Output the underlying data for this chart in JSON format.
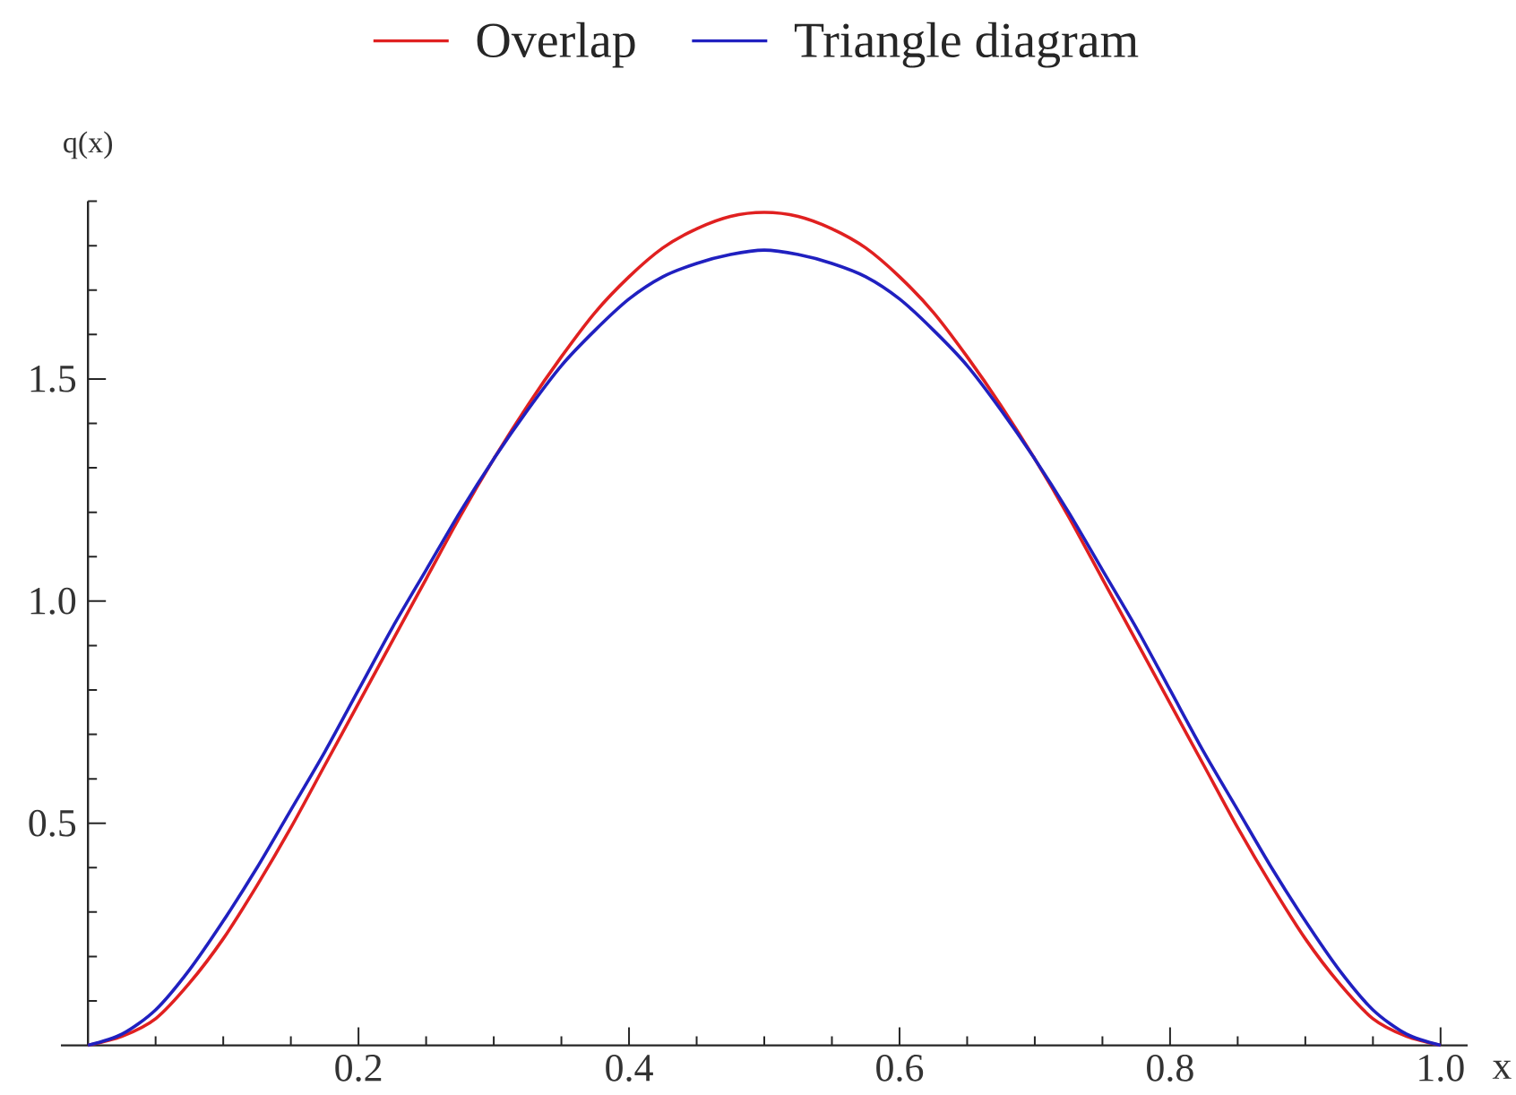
{
  "chart_data": {
    "type": "line",
    "xlabel": "x",
    "ylabel": "q(x)",
    "legend": "top",
    "marker": "none",
    "xlim": [
      -0.02,
      1.02
    ],
    "ylim": [
      0,
      1.9
    ],
    "xticks": [
      {
        "value": 0.05,
        "label": null
      },
      {
        "value": 0.1,
        "label": null
      },
      {
        "value": 0.15,
        "label": null
      },
      0.2,
      {
        "value": 0.25,
        "label": null
      },
      {
        "value": 0.3,
        "label": null
      },
      {
        "value": 0.35,
        "label": null
      },
      0.4,
      {
        "value": 0.45,
        "label": null
      },
      {
        "value": 0.5,
        "label": null
      },
      {
        "value": 0.55,
        "label": null
      },
      0.6,
      {
        "value": 0.65,
        "label": null
      },
      {
        "value": 0.7,
        "label": null
      },
      {
        "value": 0.75,
        "label": null
      },
      0.8,
      {
        "value": 0.85,
        "label": null
      },
      {
        "value": 0.9,
        "label": null
      },
      {
        "value": 0.95,
        "label": null
      },
      {
        "value": 1,
        "label": "1.0"
      }
    ],
    "yticks": [
      {
        "value": 0.1,
        "label": null
      },
      {
        "value": 0.2,
        "label": null
      },
      {
        "value": 0.3,
        "label": null
      },
      {
        "value": 0.4,
        "label": null
      },
      0.5,
      {
        "value": 0.6,
        "label": null
      },
      {
        "value": 0.7,
        "label": null
      },
      {
        "value": 0.8,
        "label": null
      },
      {
        "value": 0.9,
        "label": null
      },
      {
        "value": 1,
        "label": "1.0"
      },
      {
        "value": 1.1,
        "label": null
      },
      {
        "value": 1.2,
        "label": null
      },
      {
        "value": 1.3,
        "label": null
      },
      {
        "value": 1.4,
        "label": null
      },
      1.5,
      {
        "value": 1.6,
        "label": null
      },
      {
        "value": 1.7,
        "label": null
      },
      {
        "value": 1.8,
        "label": null
      },
      {
        "value": 1.9,
        "label": null
      }
    ],
    "x": [
      0,
      0.025,
      0.05,
      0.075,
      0.1,
      0.125,
      0.15,
      0.175,
      0.2,
      0.225,
      0.25,
      0.275,
      0.3,
      0.325,
      0.35,
      0.375,
      0.4,
      0.425,
      0.45,
      0.475,
      0.5,
      0.525,
      0.55,
      0.575,
      0.6,
      0.625,
      0.65,
      0.675,
      0.7,
      0.725,
      0.75,
      0.775,
      0.8,
      0.825,
      0.85,
      0.875,
      0.9,
      0.925,
      0.95,
      0.975,
      1
    ],
    "series": [
      {
        "name": "Overlap",
        "color": "#e02020",
        "values": [
          0,
          0.02,
          0.06,
          0.14,
          0.24,
          0.36,
          0.49,
          0.63,
          0.77,
          0.91,
          1.05,
          1.19,
          1.32,
          1.44,
          1.55,
          1.65,
          1.73,
          1.795,
          1.838,
          1.866,
          1.875,
          1.866,
          1.838,
          1.795,
          1.73,
          1.65,
          1.55,
          1.44,
          1.32,
          1.19,
          1.05,
          0.91,
          0.77,
          0.63,
          0.49,
          0.36,
          0.24,
          0.14,
          0.06,
          0.02,
          0
        ]
      },
      {
        "name": "Triangle diagram",
        "color": "#2020c0",
        "values": [
          0,
          0.025,
          0.08,
          0.17,
          0.28,
          0.4,
          0.53,
          0.66,
          0.8,
          0.94,
          1.07,
          1.2,
          1.32,
          1.43,
          1.53,
          1.61,
          1.68,
          1.73,
          1.76,
          1.78,
          1.79,
          1.78,
          1.76,
          1.73,
          1.68,
          1.61,
          1.53,
          1.43,
          1.32,
          1.2,
          1.07,
          0.94,
          0.8,
          0.66,
          0.53,
          0.4,
          0.28,
          0.17,
          0.08,
          0.025,
          0
        ]
      }
    ]
  }
}
